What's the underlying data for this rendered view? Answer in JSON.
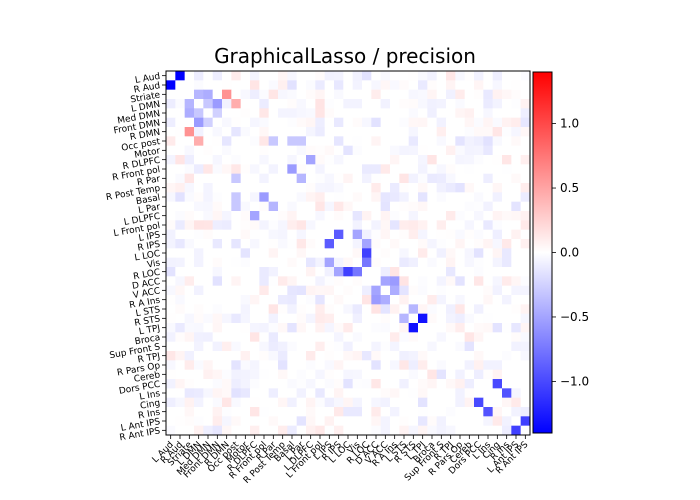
{
  "chart_data": {
    "type": "heatmap",
    "title": "GraphicalLasso / precision",
    "labels": [
      "L Aud",
      "R Aud",
      "Striate",
      "L DMN",
      "Med DMN",
      "Front DMN",
      "R DMN",
      "Occ post",
      "Motor",
      "R DLPFC",
      "R Front pol",
      "R Par",
      "R Post Temp",
      "Basal",
      "L Par",
      "L DLPFC",
      "L Front pol",
      "L IPS",
      "R IPS",
      "L LOC",
      "Vis",
      "R LOC",
      "D ACC",
      "V ACC",
      "R A Ins",
      "L STS",
      "R STS",
      "L TPJ",
      "Broca",
      "Sup Front S",
      "R TPJ",
      "R Pars Op",
      "Cereb",
      "Dors PCC",
      "L Ins",
      "Cing",
      "R Ins",
      "L Ant IPS",
      "R Ant IPS"
    ],
    "colorbar": {
      "ticks": [
        -1.0,
        -0.5,
        0.0,
        0.5,
        1.0
      ],
      "tick_labels": [
        "−1.0",
        "−0.5",
        "0.0",
        "0.5",
        "1.0"
      ],
      "range": [
        -1.4,
        1.4
      ],
      "cmap": "bwr"
    },
    "diagonal": "not shown (white)",
    "values_note": "sparse symmetric precision matrix; most off-diagonal entries near 0",
    "strong_entries": [
      {
        "row": "L Aud",
        "col": "R Aud",
        "value": -1.4
      },
      {
        "row": "Striate",
        "col": "L DMN",
        "value": -0.4
      },
      {
        "row": "Striate",
        "col": "Med DMN",
        "value": -0.45
      },
      {
        "row": "Striate",
        "col": "R DMN",
        "value": 0.6
      },
      {
        "row": "L DMN",
        "col": "Front DMN",
        "value": -0.55
      },
      {
        "row": "L DMN",
        "col": "Med DMN",
        "value": -0.3
      },
      {
        "row": "Front DMN",
        "col": "Med DMN",
        "value": -0.25
      },
      {
        "row": "L DMN",
        "col": "Occ post",
        "value": 0.45
      },
      {
        "row": "Occ post",
        "col": "Basal",
        "value": -0.3
      },
      {
        "row": "Occ post",
        "col": "R Par",
        "value": -0.3
      },
      {
        "row": "Occ post",
        "col": "L Par",
        "value": -0.3
      },
      {
        "row": "R Front pol",
        "col": "Basal",
        "value": -0.55
      },
      {
        "row": "R DLPFC",
        "col": "L DLPFC",
        "value": -0.5
      },
      {
        "row": "R Par",
        "col": "L Par",
        "value": -0.4
      },
      {
        "row": "L IPS",
        "col": "R IPS",
        "value": -0.9
      },
      {
        "row": "L IPS",
        "col": "Vis",
        "value": -0.5
      },
      {
        "row": "R IPS",
        "col": "R LOC",
        "value": -0.5
      },
      {
        "row": "L LOC",
        "col": "R LOC",
        "value": -1.05
      },
      {
        "row": "R LOC",
        "col": "Vis",
        "value": -0.75
      },
      {
        "row": "D ACC",
        "col": "V ACC",
        "value": -0.5
      },
      {
        "row": "D ACC",
        "col": "R A Ins",
        "value": -0.55
      },
      {
        "row": "V ACC",
        "col": "R A Ins",
        "value": -0.45
      },
      {
        "row": "R STS",
        "col": "L TPJ",
        "value": -1.3
      },
      {
        "row": "L STS",
        "col": "R STS",
        "value": -0.4
      },
      {
        "row": "Dors PCC",
        "col": "Cing",
        "value": -1.0
      },
      {
        "row": "L Ins",
        "col": "R Ins",
        "value": -0.95
      },
      {
        "row": "L Ant IPS",
        "col": "R Ant IPS",
        "value": -1.05
      }
    ]
  }
}
